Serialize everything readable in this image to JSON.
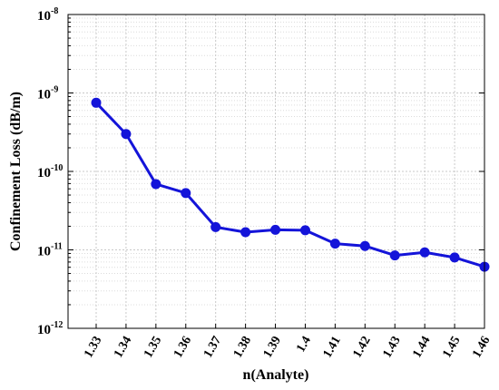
{
  "chart_data": {
    "type": "line",
    "title": "",
    "xlabel": "n(Analyte)",
    "ylabel": "Confinement Loss (dB/m)",
    "yscale": "log",
    "ylim": [
      1e-12,
      1e-08
    ],
    "grid": true,
    "x": [
      1.33,
      1.34,
      1.35,
      1.36,
      1.37,
      1.38,
      1.39,
      1.4,
      1.41,
      1.42,
      1.43,
      1.44,
      1.45,
      1.46
    ],
    "x_tick_labels": [
      "1.33",
      "1.34",
      "1.35",
      "1.36",
      "1.37",
      "1.38",
      "1.39",
      "1.4",
      "1.41",
      "1.42",
      "1.43",
      "1.44",
      "1.45",
      "1.46"
    ],
    "y_ticks": [
      {
        "base": "10",
        "exp": "-8"
      },
      {
        "base": "10",
        "exp": "-9"
      },
      {
        "base": "10",
        "exp": "-10"
      },
      {
        "base": "10",
        "exp": "-11"
      },
      {
        "base": "10",
        "exp": "-12"
      }
    ],
    "series": [
      {
        "color": "#1414d9",
        "marker": "circle",
        "values": [
          7.5e-10,
          3e-10,
          6.9e-11,
          5.3e-11,
          1.95e-11,
          1.68e-11,
          1.8e-11,
          1.78e-11,
          1.2e-11,
          1.12e-11,
          8.5e-12,
          9.3e-12,
          8e-12,
          6.1e-12
        ]
      }
    ]
  }
}
